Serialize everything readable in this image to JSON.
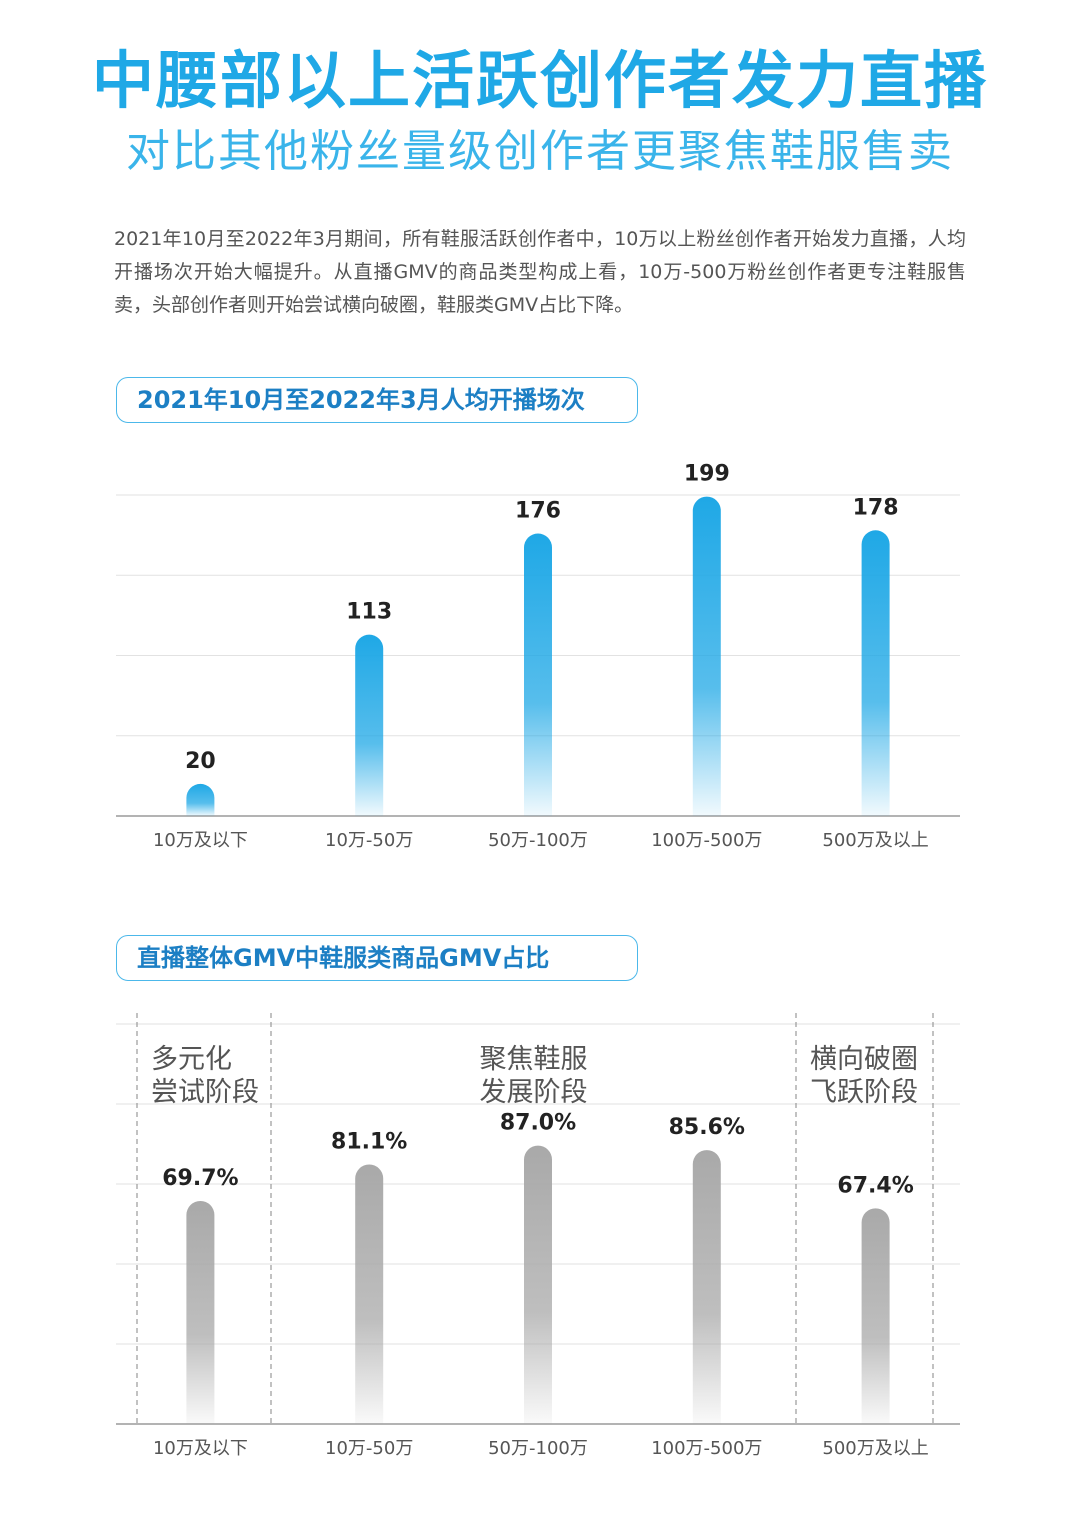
{
  "header": {
    "title": "中腰部以上活跃创作者发力直播",
    "subtitle": "对比其他粉丝量级创作者更聚焦鞋服售卖"
  },
  "intro": "2021年10月至2022年3月期间，所有鞋服活跃创作者中，10万以上粉丝创作者开始发力直播，人均开播场次开始大幅提升。从直播GMV的商品类型构成上看，10万-500万粉丝创作者更专注鞋服售卖，头部创作者则开始尝试横向破圈，鞋服类GMV占比下降。",
  "sections": [
    {
      "title": "2021年10月至2022年3月人均开播场次"
    },
    {
      "title": "直播整体GMV中鞋服类商品GMV占比"
    }
  ],
  "chart_data": [
    {
      "type": "bar",
      "title": "2021年10月至2022年3月人均开播场次",
      "categories": [
        "10万及以下",
        "10万-50万",
        "50万-100万",
        "100万-500万",
        "500万及以上"
      ],
      "values": [
        20,
        113,
        176,
        199,
        178
      ],
      "value_labels": [
        "20",
        "113",
        "176",
        "199",
        "178"
      ],
      "ylim": [
        0,
        200
      ],
      "grid": true,
      "color": "#1fa8e6"
    },
    {
      "type": "bar",
      "title": "直播整体GMV中鞋服类商品GMV占比",
      "categories": [
        "10万及以下",
        "10万-50万",
        "50万-100万",
        "100万-500万",
        "500万及以上"
      ],
      "values": [
        69.7,
        81.1,
        87.0,
        85.6,
        67.4
      ],
      "value_labels": [
        "69.7%",
        "81.1%",
        "87.0%",
        "85.6%",
        "67.4%"
      ],
      "ylim": [
        0,
        125
      ],
      "grid": true,
      "color": "#a9a9a9",
      "stages": [
        {
          "lines": [
            "多元化",
            "尝试阶段"
          ],
          "category_range": [
            0,
            0
          ]
        },
        {
          "lines": [
            "聚焦鞋服",
            "发展阶段"
          ],
          "category_range": [
            1,
            3
          ]
        },
        {
          "lines": [
            "横向破圈",
            "飞跃阶段"
          ],
          "category_range": [
            4,
            4
          ]
        }
      ]
    }
  ]
}
